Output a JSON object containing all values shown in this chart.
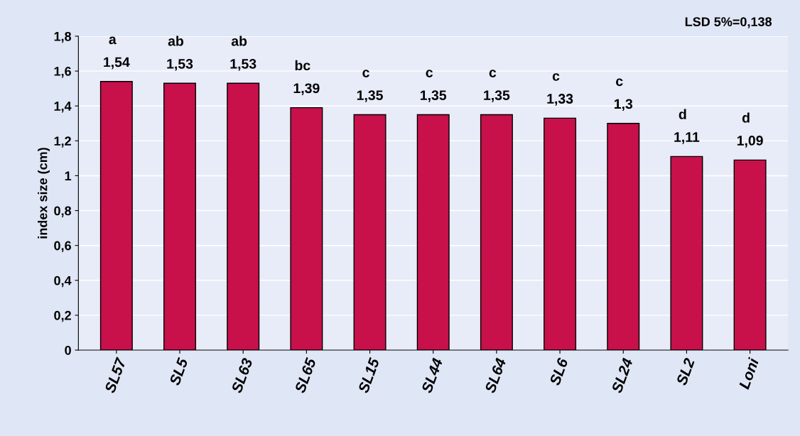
{
  "chart_data": {
    "type": "bar",
    "ylabel": "index size (cm)",
    "categories": [
      "SL57",
      "SL5",
      "SL63",
      "SL65",
      "SL15",
      "SL44",
      "SL64",
      "SL6",
      "SL24",
      "SL2",
      "Loni"
    ],
    "values": [
      1.54,
      1.53,
      1.53,
      1.39,
      1.35,
      1.35,
      1.35,
      1.33,
      1.3,
      1.11,
      1.09
    ],
    "value_labels": [
      "1,54",
      "1,53",
      "1,53",
      "1,39",
      "1,35",
      "1,35",
      "1,35",
      "1,33",
      "1,3",
      "1,11",
      "1,09"
    ],
    "color": "#c8104a",
    "ylim": [
      0,
      1.8
    ],
    "yticks": [
      0,
      {
        "value": 0.2,
        "label": "0,2"
      },
      {
        "value": 0.4,
        "label": "0,4"
      },
      {
        "value": 0.6,
        "label": "0,6"
      },
      {
        "value": 0.8,
        "label": "0,8"
      },
      1,
      {
        "value": 1.2,
        "label": "1,2"
      },
      {
        "value": 1.4,
        "label": "1,4"
      },
      {
        "value": 1.6,
        "label": "1,6"
      },
      {
        "value": 1.8,
        "label": "1,8"
      }
    ],
    "grid": "y",
    "annotations": [
      "LSD 5%=0,138",
      {
        "text": "a",
        "x": "SL57",
        "y": 1.54
      },
      {
        "text": "ab",
        "x": "SL5",
        "y": 1.53
      },
      {
        "text": "ab",
        "x": "SL63",
        "y": 1.53
      },
      {
        "text": "bc",
        "x": "SL65",
        "y": 1.39
      },
      {
        "text": "c",
        "x": "SL15",
        "y": 1.35
      },
      {
        "text": "c",
        "x": "SL44",
        "y": 1.35
      },
      {
        "text": "c",
        "x": "SL64",
        "y": 1.35
      },
      {
        "text": "c",
        "x": "SL6",
        "y": 1.33
      },
      {
        "text": "c",
        "x": "SL24",
        "y": 1.3
      },
      {
        "text": "d",
        "x": "SL2",
        "y": 1.11
      },
      {
        "text": "d",
        "x": "Loni",
        "y": 1.09
      }
    ]
  }
}
